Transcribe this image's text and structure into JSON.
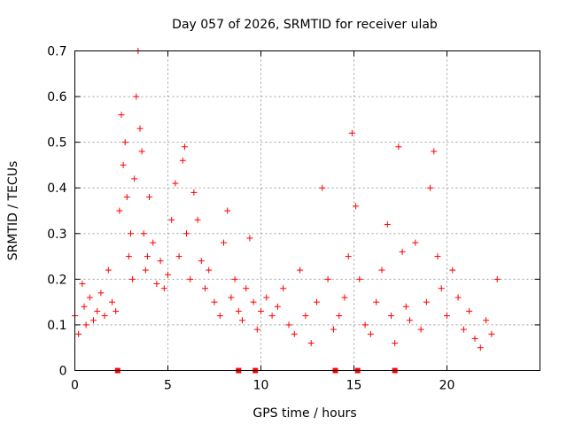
{
  "chart_data": {
    "type": "scatter",
    "title": "Day 057 of 2026, SRMTID for receiver ulab",
    "xlabel": "GPS time / hours",
    "ylabel": "SRMTID / TECUs",
    "xlim": [
      0,
      25
    ],
    "ylim": [
      0,
      0.7
    ],
    "xticks": [
      0,
      5,
      10,
      15,
      20
    ],
    "yticks": [
      0,
      0.1,
      0.2,
      0.3,
      0.4,
      0.5,
      0.6,
      0.7
    ],
    "xtick_labels": [
      "0",
      "5",
      "10",
      "15",
      "20"
    ],
    "ytick_labels": [
      "0",
      "0.1",
      "0.2",
      "0.3",
      "0.4",
      "0.5",
      "0.6",
      "0.7"
    ],
    "grid": true,
    "marker": "+",
    "color": "#ff0000",
    "zero_value_markers": [
      2.3,
      8.8,
      9.7,
      14.0,
      15.2,
      17.2
    ],
    "series": [
      {
        "name": "SRMTID",
        "x": [
          0.0,
          0.2,
          0.4,
          0.5,
          0.6,
          0.8,
          1.0,
          1.2,
          1.4,
          1.6,
          1.8,
          2.0,
          2.2,
          2.4,
          2.5,
          2.6,
          2.7,
          2.8,
          2.9,
          3.0,
          3.1,
          3.2,
          3.3,
          3.4,
          3.5,
          3.6,
          3.7,
          3.8,
          3.9,
          4.0,
          4.2,
          4.4,
          4.6,
          4.8,
          5.0,
          5.2,
          5.4,
          5.6,
          5.8,
          5.9,
          6.0,
          6.2,
          6.4,
          6.6,
          6.8,
          7.0,
          7.2,
          7.5,
          7.8,
          8.0,
          8.2,
          8.4,
          8.6,
          8.8,
          9.0,
          9.2,
          9.4,
          9.6,
          9.8,
          10.0,
          10.3,
          10.6,
          10.9,
          11.2,
          11.5,
          11.8,
          12.1,
          12.4,
          12.7,
          13.0,
          13.3,
          13.6,
          13.9,
          14.2,
          14.5,
          14.7,
          14.9,
          15.1,
          15.3,
          15.6,
          15.9,
          16.2,
          16.5,
          16.8,
          17.0,
          17.2,
          17.4,
          17.6,
          17.8,
          18.0,
          18.3,
          18.6,
          18.9,
          19.1,
          19.3,
          19.5,
          19.7,
          20.0,
          20.3,
          20.6,
          20.9,
          21.2,
          21.5,
          21.8,
          22.1,
          22.4,
          22.7
        ],
        "values": [
          0.12,
          0.08,
          0.19,
          0.14,
          0.1,
          0.16,
          0.11,
          0.13,
          0.17,
          0.12,
          0.22,
          0.15,
          0.13,
          0.35,
          0.56,
          0.45,
          0.5,
          0.38,
          0.25,
          0.3,
          0.2,
          0.42,
          0.6,
          0.7,
          0.53,
          0.48,
          0.3,
          0.22,
          0.25,
          0.38,
          0.28,
          0.19,
          0.24,
          0.18,
          0.21,
          0.33,
          0.41,
          0.25,
          0.46,
          0.49,
          0.3,
          0.2,
          0.39,
          0.33,
          0.24,
          0.18,
          0.22,
          0.15,
          0.12,
          0.28,
          0.35,
          0.16,
          0.2,
          0.13,
          0.11,
          0.18,
          0.29,
          0.15,
          0.09,
          0.13,
          0.16,
          0.12,
          0.14,
          0.18,
          0.1,
          0.08,
          0.22,
          0.12,
          0.06,
          0.15,
          0.4,
          0.2,
          0.09,
          0.12,
          0.16,
          0.25,
          0.52,
          0.36,
          0.2,
          0.1,
          0.08,
          0.15,
          0.22,
          0.32,
          0.12,
          0.06,
          0.49,
          0.26,
          0.14,
          0.11,
          0.28,
          0.09,
          0.15,
          0.4,
          0.48,
          0.25,
          0.18,
          0.12,
          0.22,
          0.16,
          0.09,
          0.13,
          0.07,
          0.05,
          0.11,
          0.08,
          0.2
        ]
      }
    ]
  }
}
